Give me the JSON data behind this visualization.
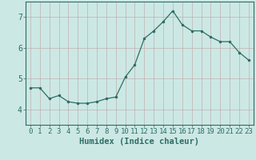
{
  "x": [
    0,
    1,
    2,
    3,
    4,
    5,
    6,
    7,
    8,
    9,
    10,
    11,
    12,
    13,
    14,
    15,
    16,
    17,
    18,
    19,
    20,
    21,
    22,
    23
  ],
  "y": [
    4.7,
    4.7,
    4.35,
    4.45,
    4.25,
    4.2,
    4.2,
    4.25,
    4.35,
    4.4,
    5.05,
    5.45,
    6.3,
    6.55,
    6.85,
    7.2,
    6.75,
    6.55,
    6.55,
    6.35,
    6.2,
    6.2,
    5.85,
    5.6
  ],
  "xlabel": "Humidex (Indice chaleur)",
  "ylim": [
    3.5,
    7.5
  ],
  "xlim": [
    -0.5,
    23.5
  ],
  "yticks": [
    4,
    5,
    6,
    7
  ],
  "xtick_labels": [
    "0",
    "1",
    "2",
    "3",
    "4",
    "5",
    "6",
    "7",
    "8",
    "9",
    "10",
    "11",
    "12",
    "13",
    "14",
    "15",
    "16",
    "17",
    "18",
    "19",
    "20",
    "21",
    "22",
    "23"
  ],
  "line_color": "#2d6e65",
  "marker": ".",
  "marker_size": 3,
  "bg_color": "#cce8e5",
  "grid_color": "#c0b0b0",
  "spine_color": "#2d6e65",
  "tick_color": "#2d6e65",
  "label_color": "#2d6e65",
  "font_size_ticks": 6.5,
  "font_size_xlabel": 7.5
}
